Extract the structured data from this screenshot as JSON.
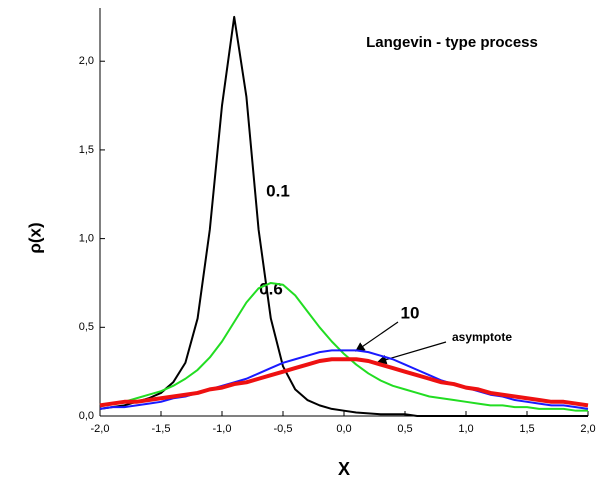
{
  "chart_data": {
    "type": "line",
    "title": "Langevin - type process",
    "xlabel": "X",
    "ylabel": "ρ(x)",
    "x": [
      -2.0,
      -1.9,
      -1.8,
      -1.7,
      -1.6,
      -1.5,
      -1.4,
      -1.3,
      -1.2,
      -1.1,
      -1.0,
      -0.9,
      -0.8,
      -0.7,
      -0.6,
      -0.5,
      -0.4,
      -0.3,
      -0.2,
      -0.1,
      0.0,
      0.1,
      0.2,
      0.3,
      0.4,
      0.5,
      0.6,
      0.7,
      0.8,
      0.9,
      1.0,
      1.1,
      1.2,
      1.3,
      1.4,
      1.5,
      1.6,
      1.7,
      1.8,
      1.9,
      2.0
    ],
    "series": [
      {
        "name": "0.1",
        "color": "#000000",
        "values": [
          0.04,
          0.05,
          0.06,
          0.08,
          0.1,
          0.13,
          0.19,
          0.3,
          0.55,
          1.05,
          1.75,
          2.25,
          1.8,
          1.05,
          0.55,
          0.28,
          0.15,
          0.09,
          0.06,
          0.04,
          0.03,
          0.02,
          0.015,
          0.01,
          0.01,
          0.01,
          0,
          0,
          0,
          0,
          0,
          0,
          0,
          0,
          0,
          0,
          0,
          0,
          0,
          0,
          0
        ]
      },
      {
        "name": "0.6",
        "color": "#22dd22",
        "values": [
          0.06,
          0.07,
          0.08,
          0.1,
          0.12,
          0.14,
          0.17,
          0.21,
          0.26,
          0.33,
          0.42,
          0.53,
          0.64,
          0.72,
          0.75,
          0.74,
          0.68,
          0.59,
          0.5,
          0.42,
          0.35,
          0.29,
          0.24,
          0.2,
          0.17,
          0.15,
          0.13,
          0.11,
          0.1,
          0.09,
          0.08,
          0.07,
          0.06,
          0.06,
          0.05,
          0.05,
          0.04,
          0.04,
          0.04,
          0.03,
          0.03
        ]
      },
      {
        "name": "10",
        "color": "#1a1aff",
        "values": [
          0.04,
          0.05,
          0.05,
          0.06,
          0.07,
          0.08,
          0.1,
          0.11,
          0.13,
          0.15,
          0.17,
          0.19,
          0.21,
          0.24,
          0.27,
          0.3,
          0.32,
          0.34,
          0.36,
          0.37,
          0.37,
          0.37,
          0.36,
          0.34,
          0.32,
          0.29,
          0.26,
          0.23,
          0.2,
          0.18,
          0.16,
          0.14,
          0.12,
          0.11,
          0.09,
          0.08,
          0.07,
          0.06,
          0.06,
          0.05,
          0.04
        ]
      },
      {
        "name": "asymptote",
        "color": "#ee1111",
        "width": 4,
        "values": [
          0.06,
          0.07,
          0.08,
          0.08,
          0.09,
          0.1,
          0.11,
          0.12,
          0.13,
          0.15,
          0.16,
          0.18,
          0.19,
          0.21,
          0.23,
          0.25,
          0.27,
          0.29,
          0.31,
          0.32,
          0.32,
          0.32,
          0.31,
          0.29,
          0.27,
          0.25,
          0.23,
          0.21,
          0.19,
          0.18,
          0.16,
          0.15,
          0.13,
          0.12,
          0.11,
          0.1,
          0.09,
          0.08,
          0.08,
          0.07,
          0.06
        ]
      }
    ],
    "xlim": [
      -2,
      2
    ],
    "ylim": [
      0,
      2.3
    ],
    "xticks": [
      {
        "value": -2,
        "label": "-2,0"
      },
      {
        "value": -1.5,
        "label": "-1,5"
      },
      {
        "value": -1,
        "label": "-1,0"
      },
      {
        "value": -0.5,
        "label": "-0,5"
      },
      {
        "value": 0,
        "label": "0,0"
      },
      {
        "value": 0.5,
        "label": "0,5"
      },
      {
        "value": 1,
        "label": "1,0"
      },
      {
        "value": 1.5,
        "label": "1,5"
      },
      {
        "value": 2,
        "label": "2,0"
      }
    ],
    "yticks": [
      {
        "value": 0,
        "label": "0,0"
      },
      {
        "value": 0.5,
        "label": "0,5"
      },
      {
        "value": 1,
        "label": "1,0"
      },
      {
        "value": 1.5,
        "label": "1,5"
      },
      {
        "value": 2,
        "label": "2,0"
      }
    ]
  }
}
